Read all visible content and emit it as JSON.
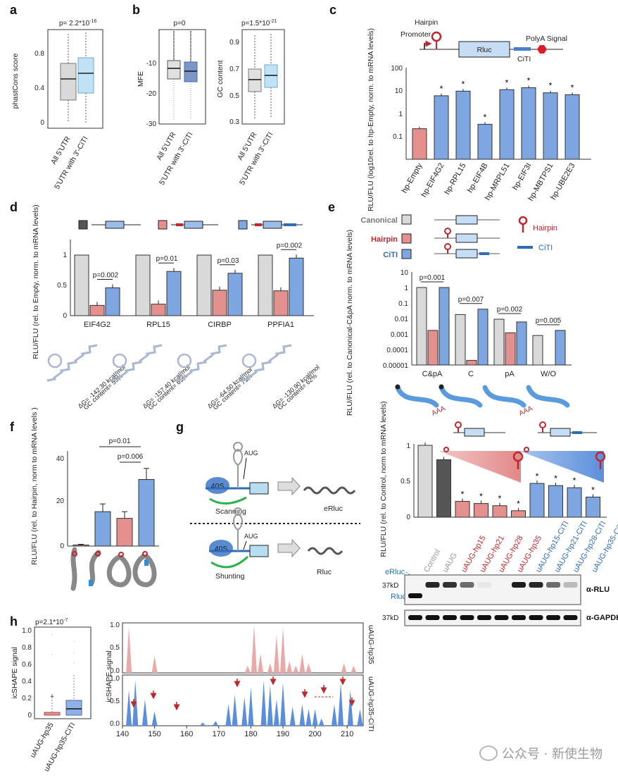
{
  "panels": {
    "a": {
      "label": "a",
      "p": "p= 2.2*10",
      "p_exp": "-16",
      "ylabel": "phastCons score",
      "yticks": [
        "0.8",
        "0.4",
        "0"
      ],
      "xticks": [
        "All 5'UTR",
        "5'UTR with 3'-CiTI"
      ]
    },
    "b": {
      "label": "b",
      "mfe_p": "p=0",
      "mfe_ylabel": "MFE",
      "mfe_yticks": [
        "-10",
        "-20",
        "-30"
      ],
      "gc_p": "p=1.5*10",
      "gc_p_exp": "-21",
      "gc_ylabel": "GC content",
      "gc_yticks": [
        "0.9",
        "0.7",
        "0.5",
        "0.3"
      ],
      "xticks": [
        "All 5'UTR",
        "5'UTR with 3'-CiTI"
      ]
    },
    "c": {
      "label": "c",
      "hairpin": "Hairpin",
      "promoter": "Promoter",
      "rluc": "Rluc",
      "citi": "CiTI",
      "polya": "PolyA Signal",
      "ylabel": "RLU/FLU (log10rel. to hp-Empty, norm. to mRNA levels)",
      "yticks": [
        "100",
        "10",
        "1",
        "0.1"
      ],
      "categories": [
        "hp-Empty",
        "hp-EIF4G2",
        "hp-RPL15",
        "hp-EIF4B",
        "hp-MRPL51",
        "hp-EIF3I",
        "hp-MBTPS1",
        "hp-UBE2E3"
      ],
      "star": "*"
    },
    "d": {
      "label": "d",
      "ylabel": "RLU/FLU (rel. to Empty, norm. to mRNA levels)",
      "yticks": [
        "1",
        "0.5",
        "0"
      ],
      "genes": [
        "EIF4G2",
        "RPL15",
        "CIRBP",
        "PPFIA1"
      ],
      "pvals": [
        "p=0.002",
        "p=0.01",
        "p=0.03",
        "p=0.002"
      ],
      "structs": [
        {
          "dg": "ΔG= -142.30 kcal/mol",
          "gc": "GC content= 59%"
        },
        {
          "dg": "ΔG= -157.40 kcal/mol",
          "gc": "GC content= 65%"
        },
        {
          "dg": "ΔG= -64.50 kcal/mol",
          "gc": "GC content= 71%"
        },
        {
          "dg": "ΔG= -130.90 kcal/mol",
          "gc": "GC content= 62%"
        }
      ]
    },
    "e": {
      "label": "e",
      "legend": {
        "canonical": "Canonical",
        "hairpin": "Hairpin",
        "citi": "CiTI"
      },
      "hairpin_key": "Hairpin",
      "citi_key": "CiTI",
      "ylabel": "RLU/FLU (rel. to Canonical-C&pA norm. to mRNA levels)",
      "yticks": [
        "10",
        "1",
        "0.1",
        "0.01",
        "0.001",
        "0.0001",
        "0.00001"
      ],
      "groups": [
        "C&pA",
        "C",
        "pA",
        "W/O"
      ],
      "pvals": [
        "p=0.001",
        "p=0.007",
        "p=0.002",
        "p=0.005"
      ],
      "aaa": "AAA"
    },
    "f": {
      "label": "f",
      "ylabel": "RLU/FLU (rel. to Hairpin, norm to mRNA levels )",
      "yticks": [
        "40",
        "20",
        "0"
      ],
      "p1": "p=0.01",
      "p2": "p=0.006"
    },
    "g": {
      "label": "g",
      "aug": "AUG",
      "ribosome": "40S",
      "scanning": "Scanning",
      "shunting": "Shunting",
      "erluc": "eRluc",
      "rluc": "Rluc",
      "ylabel": "RLU/FLU (rel. to Control, norm to mRNA levels)",
      "yticks": [
        "1",
        "0.5",
        "0"
      ],
      "lanes": [
        "Control",
        "uAUG",
        "uAUG-hp15",
        "uAUG-hp21",
        "uAUG-hp28",
        "uAUG-hp35",
        "uAUG-hp15-CiTI",
        "uAUG-hp21-CiTI",
        "uAUG-hp28-CiTI",
        "uAUG-hp35-CiTI"
      ],
      "blot_erluc": "eRluc",
      "blot_rluc": "Rluc",
      "mw1": "37kD",
      "mw2": "37kD",
      "ab1": "α-RLU",
      "ab2": "α-GAPDH",
      "star": "*"
    },
    "h": {
      "label": "h",
      "p": "p=2.1*10",
      "p_exp": "-7",
      "ylabel": "icSHAPE signal",
      "yticks": [
        "1.0",
        "0.8",
        "0.6",
        "0.4",
        "0.2",
        "0"
      ],
      "xticks": [
        "uAUG-hp35",
        "uAUG-hp35-CiTI"
      ],
      "track_ylabel": "icSHAPE signal",
      "track_yticks": [
        "1.0",
        "0.5",
        "0.0"
      ],
      "track1": "uAUG-hp35",
      "track2": "uAUG-hp35-CiTI",
      "positions": [
        "140",
        "150",
        "160",
        "170",
        "180",
        "190",
        "200",
        "210"
      ]
    }
  },
  "chart_data": [
    {
      "type": "bar",
      "panel": "c",
      "scale": "log",
      "ylim": [
        0.1,
        100
      ],
      "categories": [
        "hp-Empty",
        "hp-EIF4G2",
        "hp-RPL15",
        "hp-EIF4B",
        "hp-MRPL51",
        "hp-EIF3I",
        "hp-MBTPS1",
        "hp-UBE2E3"
      ],
      "values": [
        1,
        12,
        17,
        1.4,
        19,
        22,
        15,
        13
      ]
    },
    {
      "type": "bar",
      "panel": "d",
      "ylim": [
        0,
        1
      ],
      "categories": [
        "EIF4G2",
        "RPL15",
        "CIRBP",
        "PPFIA1"
      ],
      "series": [
        {
          "values": [
            1,
            1,
            1,
            1
          ]
        },
        {
          "values": [
            0.17,
            0.19,
            0.42,
            0.41
          ]
        },
        {
          "values": [
            0.46,
            0.73,
            0.7,
            0.95
          ]
        }
      ]
    },
    {
      "type": "bar",
      "panel": "e",
      "scale": "log",
      "ylim": [
        1e-05,
        10
      ],
      "categories": [
        "C&pA",
        "C",
        "pA",
        "W/O"
      ],
      "series": [
        {
          "name": "Canonical",
          "values": [
            1,
            0.018,
            0.009,
            0.0008
          ]
        },
        {
          "name": "Hairpin",
          "values": [
            0.0017,
            2e-05,
            0.0012,
            1e-05
          ]
        },
        {
          "name": "CiTI",
          "values": [
            1,
            0.04,
            0.006,
            0.0017
          ]
        }
      ]
    },
    {
      "type": "bar",
      "panel": "f",
      "ylim": [
        0,
        40
      ],
      "values": [
        0.5,
        15.5,
        12.5,
        30
      ]
    },
    {
      "type": "bar",
      "panel": "g",
      "ylim": [
        0,
        1
      ],
      "categories": [
        "Control",
        "uAUG",
        "uAUG-hp15",
        "uAUG-hp21",
        "uAUG-hp28",
        "uAUG-hp35",
        "uAUG-hp15-CiTI",
        "uAUG-hp21-CiTI",
        "uAUG-hp28-CiTI",
        "uAUG-hp35-CiTI"
      ],
      "values": [
        1,
        0.8,
        0.22,
        0.19,
        0.16,
        0.09,
        0.47,
        0.44,
        0.41,
        0.28
      ]
    },
    {
      "type": "area",
      "panel": "h",
      "xlim": [
        140,
        215
      ],
      "ylim": [
        0,
        1
      ]
    }
  ],
  "colors": {
    "grey": "#d9d9d9",
    "dark": "#555555",
    "red": "#e3908f",
    "blue": "#7ea6e0",
    "darkblue": "#3a6fc0"
  },
  "watermark": "公众号 · 新使生物"
}
